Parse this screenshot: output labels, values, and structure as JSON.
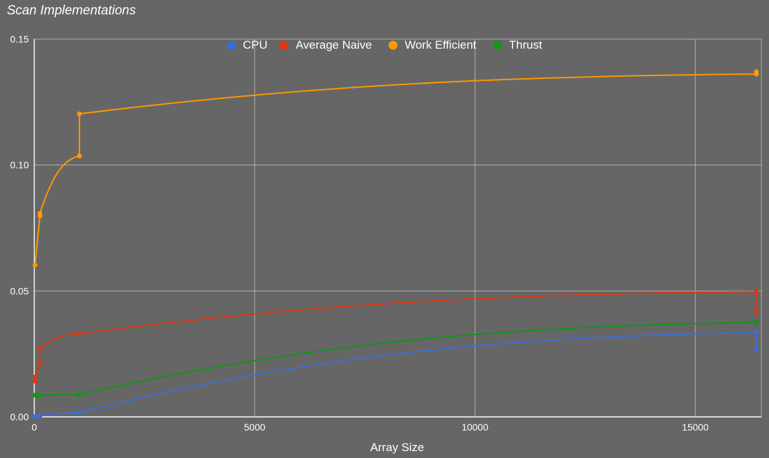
{
  "chart_data": {
    "type": "line",
    "title": "Scan Implementations",
    "xlabel": "Array Size",
    "ylabel": "",
    "xlim": [
      0,
      16500
    ],
    "ylim": [
      0,
      0.15
    ],
    "x_ticks": [
      0,
      5000,
      10000,
      15000
    ],
    "y_ticks": [
      0.0,
      0.05,
      0.1,
      0.15
    ],
    "x_tick_labels": [
      "0",
      "5000",
      "10000",
      "15000"
    ],
    "y_tick_labels": [
      "0.00",
      "0.05",
      "0.10",
      "0.15"
    ],
    "grid": true,
    "legend": "top",
    "series": [
      {
        "name": "CPU",
        "color": "#3c6ed8",
        "points": [
          [
            16,
            0.0001
          ],
          [
            32,
            0.0002
          ],
          [
            128,
            0.0004
          ],
          [
            1024,
            0.0017
          ],
          [
            16384,
            0.0335
          ],
          [
            16384,
            0.0265
          ]
        ]
      },
      {
        "name": "Average Naive",
        "color": "#dc3912",
        "points": [
          [
            16,
            0.0142
          ],
          [
            16,
            0.0158
          ],
          [
            128,
            0.0213
          ],
          [
            128,
            0.0273
          ],
          [
            1024,
            0.033
          ],
          [
            16384,
            0.0497
          ],
          [
            16384,
            0.0415
          ]
        ]
      },
      {
        "name": "Work Efficient",
        "color": "#ff9900",
        "points": [
          [
            16,
            0.0603
          ],
          [
            128,
            0.0797
          ],
          [
            128,
            0.0808
          ],
          [
            1024,
            0.1036
          ],
          [
            1024,
            0.1203
          ],
          [
            16384,
            0.1361
          ],
          [
            16384,
            0.137
          ]
        ]
      },
      {
        "name": "Thrust",
        "color": "#109618",
        "points": [
          [
            16,
            0.0086
          ],
          [
            64,
            0.0087
          ],
          [
            128,
            0.0086
          ],
          [
            1024,
            0.0088
          ],
          [
            16384,
            0.0375
          ]
        ]
      }
    ]
  }
}
